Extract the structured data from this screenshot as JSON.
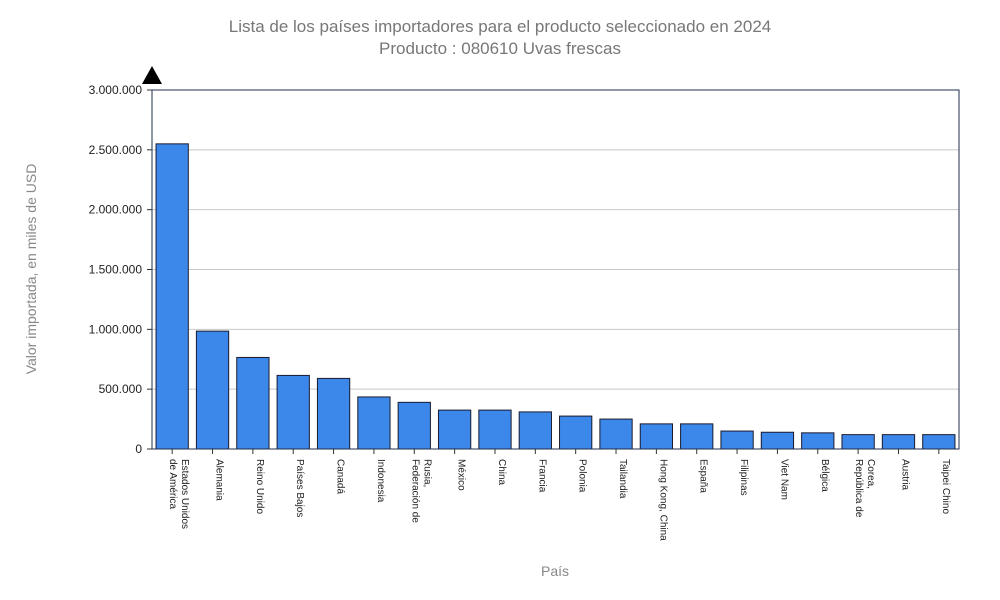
{
  "chart_data": {
    "type": "bar",
    "title": "Lista de los países importadores para el producto seleccionado en 2024",
    "subtitle": "Producto : 080610 Uvas frescas",
    "xlabel": "País",
    "ylabel": "Valor importada, en miles de USD",
    "ylim": [
      0,
      3000000
    ],
    "yticks": [
      0,
      500000,
      1000000,
      1500000,
      2000000,
      2500000,
      3000000
    ],
    "ytick_labels": [
      "0",
      "500.000",
      "1.000.000",
      "1.500.000",
      "2.000.000",
      "2.500.000",
      "3.000.000"
    ],
    "grid": true,
    "categories": [
      [
        "Estados Unidos",
        "de América"
      ],
      [
        "Alemania"
      ],
      [
        "Reino Unido"
      ],
      [
        "Países Bajos"
      ],
      [
        "Canadá"
      ],
      [
        "Indonesia"
      ],
      [
        "Rusia,",
        "Federación de"
      ],
      [
        "México"
      ],
      [
        "China"
      ],
      [
        "Francia"
      ],
      [
        "Polonia"
      ],
      [
        "Tailandia"
      ],
      [
        "Hong Kong, China"
      ],
      [
        "España"
      ],
      [
        "Filipinas"
      ],
      [
        "Viet Nam"
      ],
      [
        "Bélgica"
      ],
      [
        "Corea,",
        "República de"
      ],
      [
        "Austria"
      ],
      [
        "Taipei Chino"
      ]
    ],
    "values": [
      2550000,
      985000,
      765000,
      615000,
      590000,
      435000,
      390000,
      325000,
      325000,
      310000,
      275000,
      250000,
      210000,
      210000,
      150000,
      140000,
      135000,
      120000,
      120000,
      120000
    ],
    "bar_color": "#3c88ea",
    "bar_stroke": "#1a1a2e"
  }
}
